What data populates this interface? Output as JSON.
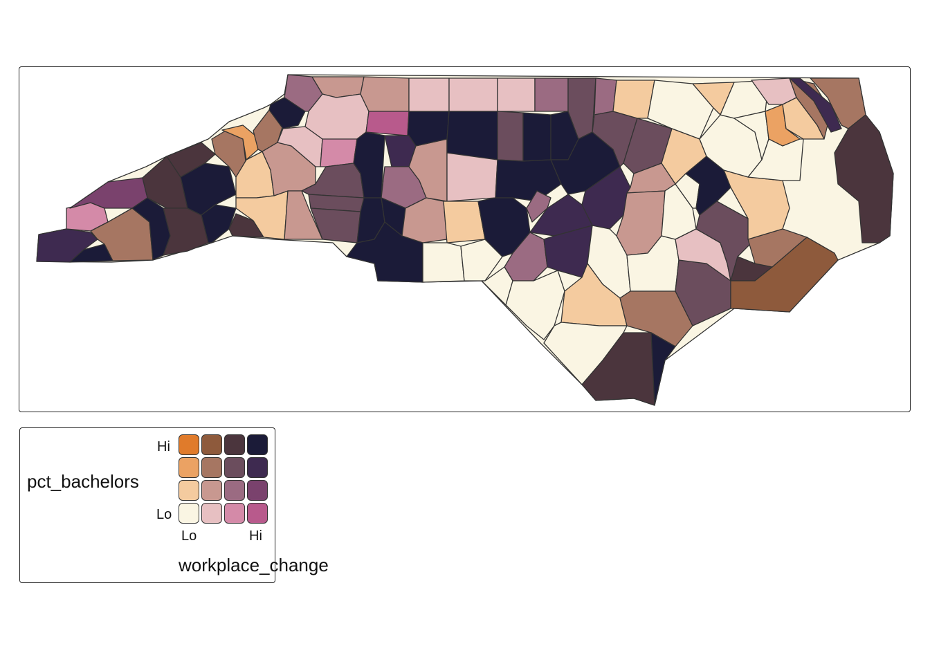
{
  "legend": {
    "y_title": "pct_bachelors",
    "x_title": "workplace_change",
    "y_hi": "Hi",
    "y_lo": "Lo",
    "x_lo": "Lo",
    "x_hi": "Hi",
    "palette_rows_hi_to_lo": [
      [
        "#e07b2b",
        "#8e5a3c",
        "#4b353d",
        "#1b1b38"
      ],
      [
        "#eba263",
        "#a67662",
        "#6b4d5d",
        "#3e2a50"
      ],
      [
        "#f4cb9f",
        "#c89890",
        "#9b6b82",
        "#7a426d"
      ],
      [
        "#faf5e3",
        "#e7c0c2",
        "#d48aa8",
        "#b85a8c"
      ]
    ]
  },
  "colors": {
    "border": "#333333",
    "background": "#ffffff"
  }
}
